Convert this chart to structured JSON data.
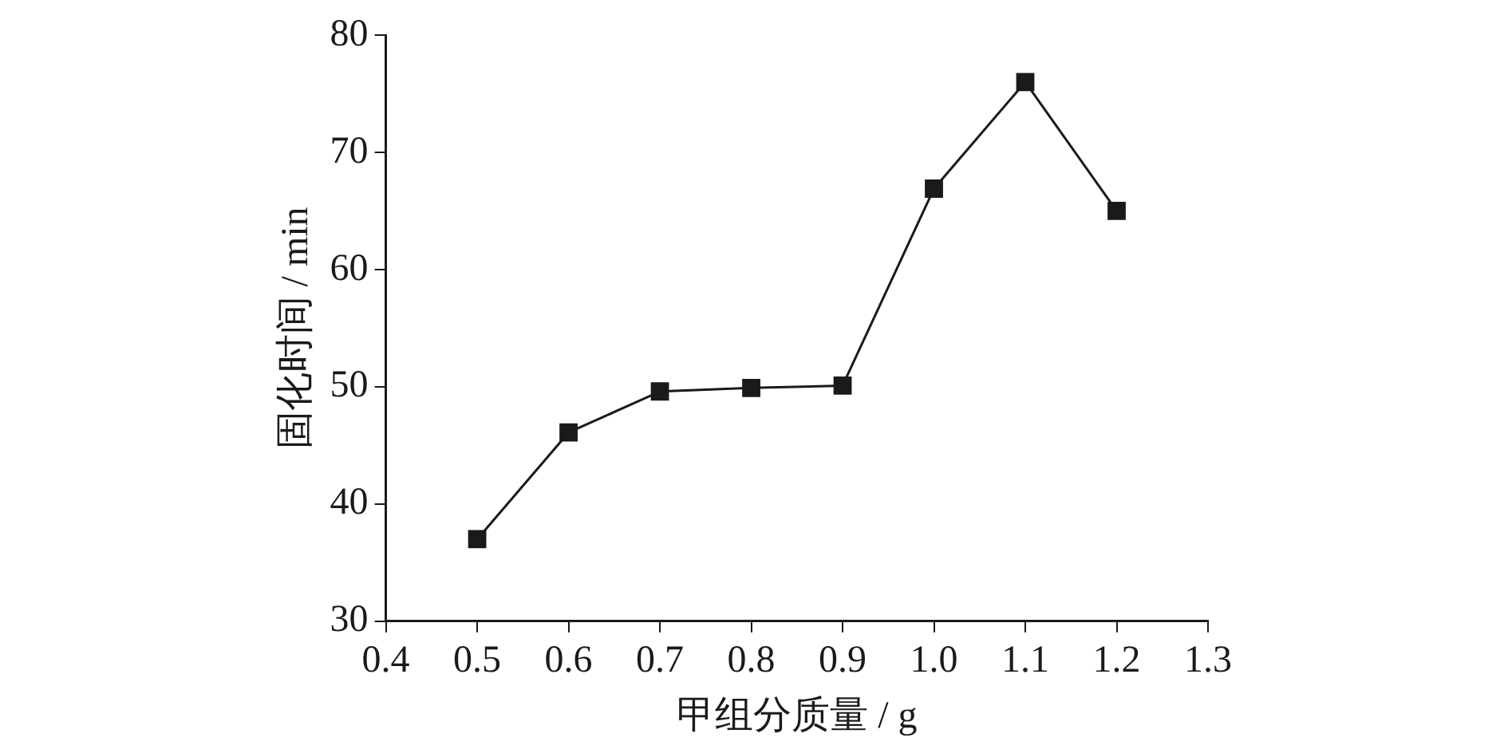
{
  "chart_data": {
    "type": "line",
    "xlabel": "甲组分质量 / g",
    "ylabel": "固化时间 / min",
    "x": [
      0.5,
      0.6,
      0.7,
      0.8,
      0.9,
      1.0,
      1.1,
      1.2
    ],
    "series": [
      {
        "color": "#1a1a1a",
        "values": [
          37.0,
          46.1,
          49.6,
          49.9,
          50.1,
          66.9,
          76.0,
          65.0
        ]
      }
    ],
    "xlim": [
      0.4,
      1.3
    ],
    "xticks": [
      0.4,
      0.5,
      0.6,
      0.7,
      0.8,
      0.9,
      {
        "value": 1.0,
        "label": "1.0"
      },
      1.1,
      1.2,
      1.3
    ],
    "ylim": [
      30,
      80
    ],
    "yticks": [
      30,
      40,
      50,
      60,
      70,
      80
    ],
    "grid": false,
    "legend": false,
    "marker": "square",
    "line_style": "solid"
  }
}
